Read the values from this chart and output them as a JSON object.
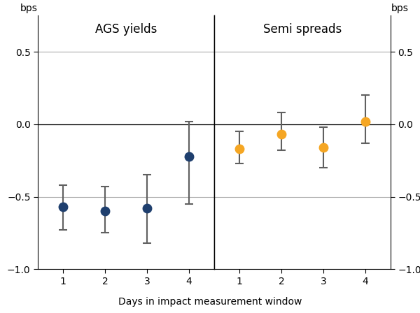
{
  "ags_values": [
    -0.57,
    -0.6,
    -0.58,
    -0.22
  ],
  "ags_upper": [
    -0.42,
    -0.43,
    -0.35,
    0.02
  ],
  "ags_lower": [
    -0.73,
    -0.75,
    -0.82,
    -0.55
  ],
  "semi_values": [
    -0.17,
    -0.07,
    -0.16,
    0.02
  ],
  "semi_upper": [
    -0.05,
    0.08,
    -0.02,
    0.2
  ],
  "semi_lower": [
    -0.27,
    -0.18,
    -0.3,
    -0.13
  ],
  "days": [
    1,
    2,
    3,
    4
  ],
  "ags_color": "#1f3f6e",
  "semi_color": "#f5a623",
  "error_color": "#606060",
  "ags_title": "AGS yields",
  "semi_title": "Semi spreads",
  "xlabel": "Days in impact measurement window",
  "ylabel_left": "bps",
  "ylabel_right": "bps",
  "ylim": [
    -1.0,
    0.75
  ],
  "yticks": [
    -1.0,
    -0.5,
    0.0,
    0.5
  ],
  "grid_color": "#aaaaaa",
  "title_fontsize": 12,
  "label_fontsize": 10,
  "tick_fontsize": 10
}
